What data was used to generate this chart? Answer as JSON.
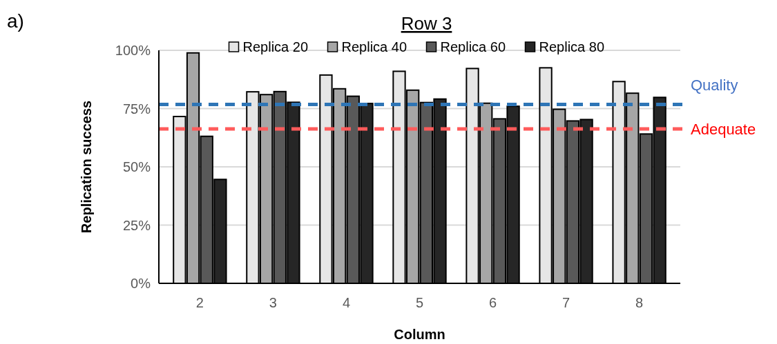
{
  "chart_data": {
    "type": "bar",
    "title": "Row 3",
    "xlabel": "Column",
    "ylabel": "Replication success",
    "annotations": [
      "a)"
    ],
    "categories": [
      "2",
      "3",
      "4",
      "5",
      "6",
      "7",
      "8"
    ],
    "series": [
      {
        "name": "Replica 20",
        "color": "#e6e6e6",
        "values": [
          71.6,
          82.2,
          89.4,
          91.0,
          92.2,
          92.5,
          86.6
        ]
      },
      {
        "name": "Replica 40",
        "color": "#a6a6a6",
        "values": [
          98.9,
          81.0,
          83.5,
          82.9,
          77.3,
          74.7,
          81.6
        ]
      },
      {
        "name": "Replica 60",
        "color": "#595959",
        "values": [
          63.1,
          82.3,
          80.3,
          77.6,
          70.6,
          69.7,
          64.1
        ]
      },
      {
        "name": "Replica 80",
        "color": "#262626",
        "values": [
          44.6,
          77.7,
          77.2,
          79.1,
          76.0,
          70.3,
          79.8
        ]
      }
    ],
    "ylim": [
      0,
      100
    ],
    "yticks": [
      {
        "value": 0,
        "label": "0%"
      },
      {
        "value": 25,
        "label": "25%"
      },
      {
        "value": 50,
        "label": "50%"
      },
      {
        "value": 75,
        "label": "75%"
      },
      {
        "value": 100,
        "label": "100%"
      }
    ],
    "grid": "y",
    "legend": "top",
    "ref_lines": [
      {
        "axis": "y",
        "value": 76.8,
        "label": "Quality",
        "color": "#2e75b6",
        "line_style": "dashed"
      },
      {
        "axis": "y",
        "value": 66.3,
        "label": "Adequate",
        "color": "#ff5b5b",
        "line_style": "dashed"
      }
    ]
  }
}
